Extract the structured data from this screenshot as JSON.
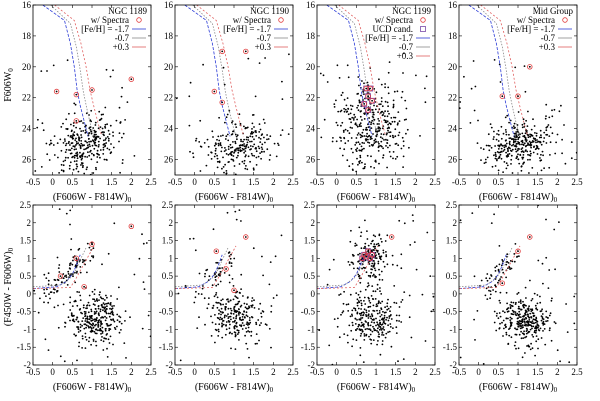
{
  "figure": {
    "top_xlabel": "(F606W - F814W)",
    "top_xlabel_sub": "0",
    "top_ylabel": "F606W",
    "top_ylabel_sub": "0",
    "bottom_xlabel": "(F606W - F814W)",
    "bottom_xlabel_sub": "0",
    "bottom_ylabel": "(F450W - F606W)",
    "bottom_ylabel_sub": "0",
    "legend_common": [
      "w/ Spectra",
      "[Fe/H] = -1.7",
      "-0.7",
      "+0.3"
    ],
    "legend_ucd": "UCD cand."
  },
  "chart_data": [
    {
      "type": "scatter",
      "title": "NGC 1189",
      "row": "top",
      "has_ucd": false,
      "xlim": [
        -0.5,
        2.5
      ],
      "ylim": [
        27,
        16
      ],
      "xticks": [
        -0.5,
        0,
        0.5,
        1,
        1.5,
        2,
        2.5
      ],
      "yticks": [
        16,
        18,
        20,
        22,
        24,
        26
      ],
      "xtick_labels": [
        "-0.5",
        "0",
        "0.5",
        "1",
        "1.5",
        "2",
        "2.5"
      ],
      "ytick_labels": [
        "16",
        "18",
        "20",
        "22",
        "24",
        "26"
      ],
      "spectra_points": [
        [
          2.0,
          20.8
        ],
        [
          0.1,
          21.6
        ],
        [
          0.6,
          21.8
        ],
        [
          1.0,
          21.5
        ],
        [
          0.6,
          23.5
        ]
      ],
      "ucd_points": [],
      "cloud": {
        "n": 300,
        "center": [
          0.85,
          25.0
        ],
        "spread": [
          0.4,
          0.9
        ],
        "tilt": -0.6
      },
      "seed": 11
    },
    {
      "type": "scatter",
      "title": "NGC 1190",
      "row": "top",
      "has_ucd": false,
      "xlim": [
        -0.5,
        2.5
      ],
      "ylim": [
        27,
        16
      ],
      "xticks": [
        -0.5,
        0,
        0.5,
        1,
        1.5,
        2,
        2.5
      ],
      "yticks": [
        16,
        18,
        20,
        22,
        24,
        26
      ],
      "xtick_labels": [
        "-0.5",
        "0",
        "0.5",
        "1",
        "1.5",
        "2",
        "2.5"
      ],
      "ytick_labels": [
        "16",
        "18",
        "20",
        "22",
        "24",
        "26"
      ],
      "spectra_points": [
        [
          0.7,
          19.0
        ],
        [
          1.3,
          19.0
        ],
        [
          0.5,
          21.6
        ],
        [
          0.7,
          22.3
        ]
      ],
      "ucd_points": [],
      "cloud": {
        "n": 230,
        "center": [
          1.1,
          25.1
        ],
        "spread": [
          0.45,
          0.8
        ],
        "tilt": -0.5
      },
      "seed": 23
    },
    {
      "type": "scatter",
      "title": "NGC 1199",
      "row": "top",
      "has_ucd": true,
      "xlim": [
        -0.5,
        2.5
      ],
      "ylim": [
        27,
        16
      ],
      "xticks": [
        -0.5,
        0,
        0.5,
        1,
        1.5,
        2,
        2.5
      ],
      "yticks": [
        16,
        18,
        20,
        22,
        24,
        26
      ],
      "xtick_labels": [
        "-0.5",
        "0",
        "0.5",
        "1",
        "1.5",
        "2",
        "2.5"
      ],
      "ytick_labels": [
        "16",
        "18",
        "20",
        "22",
        "24",
        "26"
      ],
      "spectra_points": [
        [
          0.75,
          21.4
        ],
        [
          0.85,
          21.4
        ],
        [
          0.8,
          21.9
        ],
        [
          0.9,
          22.2
        ],
        [
          0.7,
          22.4
        ],
        [
          0.8,
          22.8
        ]
      ],
      "ucd_points": [
        [
          0.75,
          21.4
        ],
        [
          0.85,
          21.4
        ],
        [
          0.8,
          21.9
        ],
        [
          0.9,
          22.2
        ],
        [
          0.7,
          22.4
        ],
        [
          0.8,
          22.8
        ]
      ],
      "cloud": {
        "n": 360,
        "center": [
          0.85,
          24.0
        ],
        "spread": [
          0.4,
          1.4
        ],
        "tilt": 0.0
      },
      "seed": 37
    },
    {
      "type": "scatter",
      "title": "Mid Group",
      "row": "top",
      "has_ucd": false,
      "xlim": [
        -0.5,
        2.5
      ],
      "ylim": [
        27,
        16
      ],
      "xticks": [
        -0.5,
        0,
        0.5,
        1,
        1.5,
        2,
        2.5
      ],
      "yticks": [
        16,
        18,
        20,
        22,
        24,
        26
      ],
      "xtick_labels": [
        "-0.5",
        "0",
        "0.5",
        "1",
        "1.5",
        "2",
        "2.5"
      ],
      "ytick_labels": [
        "16",
        "18",
        "20",
        "22",
        "24",
        "26"
      ],
      "spectra_points": [
        [
          1.3,
          20.0
        ],
        [
          0.6,
          21.9
        ],
        [
          1.0,
          21.9
        ]
      ],
      "ucd_points": [],
      "cloud": {
        "n": 320,
        "center": [
          1.05,
          25.0
        ],
        "spread": [
          0.45,
          0.8
        ],
        "tilt": -0.5
      },
      "seed": 49
    },
    {
      "type": "scatter",
      "title": "",
      "row": "bottom",
      "has_ucd": false,
      "xlim": [
        -0.5,
        2.5
      ],
      "ylim": [
        -2,
        2.5
      ],
      "xticks": [
        -0.5,
        0,
        0.5,
        1,
        1.5,
        2,
        2.5
      ],
      "yticks": [
        -2,
        -1.5,
        -1,
        -0.5,
        0,
        0.5,
        1,
        1.5,
        2,
        2.5
      ],
      "xtick_labels": [
        "-0.5",
        "0",
        "0.5",
        "1",
        "1.5",
        "2",
        "2.5"
      ],
      "ytick_labels": [
        "-2",
        "-1.5",
        "-1",
        "-0.5",
        "0",
        "0.5",
        "1",
        "1.5",
        "2",
        "2.5"
      ],
      "spectra_points": [
        [
          2.0,
          1.9
        ],
        [
          1.0,
          1.4
        ],
        [
          0.6,
          1.0
        ],
        [
          0.2,
          0.5
        ],
        [
          0.8,
          0.2
        ]
      ],
      "ucd_points": [],
      "cloud": {
        "n": 300,
        "center": [
          1.05,
          -0.7
        ],
        "spread": [
          0.35,
          0.35
        ],
        "tilt": 0.0
      },
      "branch": {
        "n": 90,
        "x0": -0.2,
        "y0": -0.1,
        "x1": 1.0,
        "y1": 1.2
      },
      "seed": 61
    },
    {
      "type": "scatter",
      "title": "",
      "row": "bottom",
      "has_ucd": false,
      "xlim": [
        -0.5,
        2.5
      ],
      "ylim": [
        -2,
        2.5
      ],
      "xticks": [
        -0.5,
        0,
        0.5,
        1,
        1.5,
        2,
        2.5
      ],
      "yticks": [
        -2,
        -1.5,
        -1,
        -0.5,
        0,
        0.5,
        1,
        1.5,
        2,
        2.5
      ],
      "xtick_labels": [
        "-0.5",
        "0",
        "0.5",
        "1",
        "1.5",
        "2",
        "2.5"
      ],
      "ytick_labels": [
        "-2",
        "-1.5",
        "-1",
        "-0.5",
        "0",
        "0.5",
        "1",
        "1.5",
        "2",
        "2.5"
      ],
      "spectra_points": [
        [
          1.3,
          1.6
        ],
        [
          0.55,
          1.2
        ],
        [
          0.8,
          0.7
        ],
        [
          1.0,
          0.1
        ]
      ],
      "ucd_points": [],
      "cloud": {
        "n": 230,
        "center": [
          1.1,
          -0.65
        ],
        "spread": [
          0.35,
          0.35
        ],
        "tilt": 0.0
      },
      "branch": {
        "n": 50,
        "x0": 0.1,
        "y0": 0.0,
        "x1": 1.0,
        "y1": 1.1
      },
      "seed": 73
    },
    {
      "type": "scatter",
      "title": "",
      "row": "bottom",
      "has_ucd": true,
      "xlim": [
        -0.5,
        2.5
      ],
      "ylim": [
        -2,
        2.5
      ],
      "xticks": [
        -0.5,
        0,
        0.5,
        1,
        1.5,
        2,
        2.5
      ],
      "yticks": [
        -2,
        -1.5,
        -1,
        -0.5,
        0,
        0.5,
        1,
        1.5,
        2,
        2.5
      ],
      "xtick_labels": [
        "-0.5",
        "0",
        "0.5",
        "1",
        "1.5",
        "2",
        "2.5"
      ],
      "ytick_labels": [
        "-2",
        "-1.5",
        "-1",
        "-0.5",
        "0",
        "0.5",
        "1",
        "1.5",
        "2",
        "2.5"
      ],
      "spectra_points": [
        [
          0.7,
          1.1
        ],
        [
          0.75,
          1.05
        ],
        [
          0.8,
          1.2
        ],
        [
          0.85,
          1.0
        ],
        [
          0.9,
          1.1
        ],
        [
          0.65,
          1.0
        ],
        [
          1.4,
          1.6
        ]
      ],
      "ucd_points": [
        [
          0.7,
          1.1
        ],
        [
          0.75,
          1.05
        ],
        [
          0.8,
          1.2
        ],
        [
          0.85,
          1.0
        ],
        [
          0.9,
          1.1
        ],
        [
          0.65,
          1.0
        ]
      ],
      "cloud": {
        "n": 260,
        "center": [
          0.9,
          -0.7
        ],
        "spread": [
          0.35,
          0.4
        ],
        "tilt": 0.0
      },
      "cluster2": {
        "n": 160,
        "center": [
          0.85,
          1.0
        ],
        "spread": [
          0.25,
          0.4
        ]
      },
      "seed": 89
    },
    {
      "type": "scatter",
      "title": "",
      "row": "bottom",
      "has_ucd": false,
      "xlim": [
        -0.5,
        2.5
      ],
      "ylim": [
        -2,
        2.5
      ],
      "xticks": [
        -0.5,
        0,
        0.5,
        1,
        1.5,
        2,
        2.5
      ],
      "yticks": [
        -2,
        -1.5,
        -1,
        -0.5,
        0,
        0.5,
        1,
        1.5,
        2,
        2.5
      ],
      "xtick_labels": [
        "-0.5",
        "0",
        "0.5",
        "1",
        "1.5",
        "2",
        "2.5"
      ],
      "ytick_labels": [
        "-2",
        "-1.5",
        "-1",
        "-0.5",
        "0",
        "0.5",
        "1",
        "1.5",
        "2",
        "2.5"
      ],
      "spectra_points": [
        [
          1.3,
          1.6
        ],
        [
          1.0,
          1.2
        ],
        [
          0.6,
          0.3
        ]
      ],
      "ucd_points": [],
      "cloud": {
        "n": 300,
        "center": [
          1.15,
          -0.75
        ],
        "spread": [
          0.35,
          0.35
        ],
        "tilt": 0.0
      },
      "branch": {
        "n": 60,
        "x0": 0.1,
        "y0": 0.0,
        "x1": 1.0,
        "y1": 1.1
      },
      "seed": 97
    }
  ],
  "isochrones": {
    "top": [
      {
        "name": "[Fe/H] = -1.7",
        "color": "#2b3bd6",
        "pts": [
          [
            -0.25,
            16.0
          ],
          [
            0.3,
            17.0
          ],
          [
            0.45,
            18.5
          ],
          [
            0.55,
            20.0
          ],
          [
            0.62,
            21.5
          ],
          [
            0.7,
            22.5
          ],
          [
            0.8,
            23.5
          ],
          [
            0.9,
            24.5
          ]
        ]
      },
      {
        "name": "-0.7",
        "color": "#8a8a8a",
        "pts": [
          [
            -0.05,
            16.0
          ],
          [
            0.45,
            17.2
          ],
          [
            0.6,
            18.7
          ],
          [
            0.7,
            20.2
          ],
          [
            0.78,
            21.6
          ],
          [
            0.86,
            22.6
          ],
          [
            0.95,
            23.6
          ],
          [
            1.05,
            24.5
          ]
        ]
      },
      {
        "name": "+0.3",
        "color": "#e06060",
        "pts": [
          [
            0.05,
            16.0
          ],
          [
            0.55,
            17.0
          ],
          [
            0.72,
            18.5
          ],
          [
            0.85,
            20.0
          ],
          [
            0.95,
            21.5
          ],
          [
            1.05,
            22.6
          ],
          [
            1.15,
            23.6
          ],
          [
            1.25,
            24.5
          ]
        ]
      }
    ],
    "bottom": [
      {
        "name": "[Fe/H] = -1.7",
        "color": "#2b3bd6",
        "pts": [
          [
            -0.5,
            0.15
          ],
          [
            0.1,
            0.2
          ],
          [
            0.35,
            0.35
          ],
          [
            0.5,
            0.55
          ],
          [
            0.6,
            0.8
          ],
          [
            0.7,
            1.1
          ]
        ]
      },
      {
        "name": "-0.7",
        "color": "#8a8a8a",
        "pts": [
          [
            -0.5,
            0.2
          ],
          [
            0.2,
            0.25
          ],
          [
            0.45,
            0.45
          ],
          [
            0.6,
            0.7
          ],
          [
            0.72,
            1.0
          ],
          [
            0.85,
            1.3
          ]
        ]
      },
      {
        "name": "+0.3",
        "color": "#e06060",
        "pts": [
          [
            -0.5,
            0.15
          ],
          [
            0.45,
            0.18
          ],
          [
            0.6,
            0.45
          ],
          [
            0.75,
            0.75
          ],
          [
            0.9,
            1.05
          ],
          [
            1.05,
            1.35
          ]
        ]
      }
    ]
  },
  "colors": {
    "points": "#000000",
    "spectra": "#e03a3a",
    "ucd": "#7a4aa8",
    "blue": "#2b3bd6",
    "gray": "#8a8a8a",
    "red": "#e06060"
  }
}
